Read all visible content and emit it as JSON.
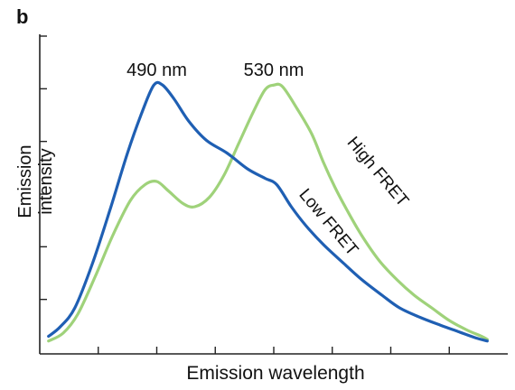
{
  "panel_label": "b",
  "chart_data": {
    "type": "line",
    "title": "",
    "xlabel": "Emission wavelength",
    "ylabel": "Emission intensity",
    "xlim": [
      450,
      610
    ],
    "ylim": [
      0,
      100
    ],
    "grid": false,
    "legend": "none",
    "annotations": [
      {
        "text": "490 nm",
        "x": 490,
        "y": 100
      },
      {
        "text": "530 nm",
        "x": 530,
        "y": 100
      }
    ],
    "series": [
      {
        "name": "Low FRET",
        "color": "#1f5fb3",
        "points": [
          [
            453,
            5
          ],
          [
            457,
            8
          ],
          [
            462,
            14
          ],
          [
            468,
            28
          ],
          [
            474,
            45
          ],
          [
            480,
            63
          ],
          [
            485,
            76
          ],
          [
            489,
            84.5
          ],
          [
            492,
            84.5
          ],
          [
            496,
            80
          ],
          [
            501,
            73
          ],
          [
            507,
            67
          ],
          [
            514,
            63
          ],
          [
            521,
            58
          ],
          [
            527,
            55
          ],
          [
            531,
            53
          ],
          [
            536,
            46
          ],
          [
            541,
            40
          ],
          [
            547,
            34
          ],
          [
            554,
            28
          ],
          [
            560,
            23
          ],
          [
            567,
            18
          ],
          [
            573,
            14
          ],
          [
            580,
            11
          ],
          [
            587,
            8.5
          ],
          [
            593,
            6.5
          ],
          [
            599,
            4.5
          ],
          [
            603,
            3.5
          ]
        ]
      },
      {
        "name": "High FRET",
        "color": "#9fd27a",
        "points": [
          [
            453,
            3.5
          ],
          [
            458,
            6
          ],
          [
            463,
            12
          ],
          [
            469,
            24
          ],
          [
            475,
            37
          ],
          [
            481,
            48
          ],
          [
            486,
            53
          ],
          [
            490,
            54
          ],
          [
            494,
            51
          ],
          [
            499,
            47
          ],
          [
            503,
            46
          ],
          [
            508,
            49
          ],
          [
            513,
            56
          ],
          [
            518,
            66
          ],
          [
            523,
            76
          ],
          [
            527,
            83
          ],
          [
            530,
            84.5
          ],
          [
            533,
            84
          ],
          [
            538,
            77
          ],
          [
            543,
            69
          ],
          [
            547,
            60
          ],
          [
            551,
            52
          ],
          [
            555,
            45
          ],
          [
            560,
            37
          ],
          [
            566,
            29
          ],
          [
            572,
            23
          ],
          [
            578,
            18
          ],
          [
            584,
            14
          ],
          [
            590,
            10
          ],
          [
            596,
            7
          ],
          [
            601,
            5
          ],
          [
            603,
            4
          ]
        ]
      }
    ]
  }
}
